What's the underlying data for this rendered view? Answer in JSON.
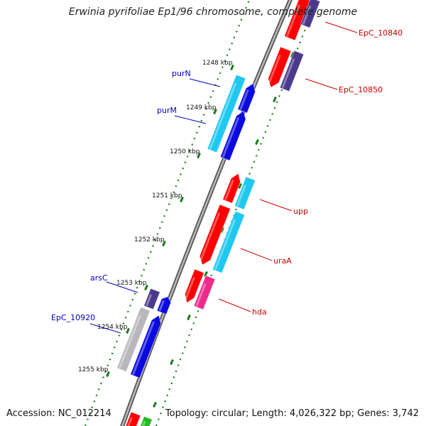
{
  "title": "Erwinia pyrifoliae Ep1/96 chromosome, complete genome",
  "accession": "Accession: NC_012214",
  "topology": "Topology: circular; Length: 4,026,322 bp; Genes: 3,742",
  "colors": {
    "backbone": "#8a8a8a",
    "tick": "#1a7a1a",
    "red_gene": "#ff0000",
    "purple_gene": "#4b3a8c",
    "cyan_gene": "#1ec8f0",
    "blue_gene": "#0a0ae0",
    "gray_gene": "#b8b8bc",
    "magenta_gene": "#ee2a8a",
    "green_gene": "#22bb22",
    "label_red": "#cc0000",
    "label_blue": "#0000bb"
  },
  "ticks": [
    {
      "label": "1248 kbp"
    },
    {
      "label": "1249 kbp"
    },
    {
      "label": "1250 kbp"
    },
    {
      "label": "1251 kbp"
    },
    {
      "label": "1252 kbp"
    },
    {
      "label": "1253 kbp"
    },
    {
      "label": "1254 kbp"
    },
    {
      "label": "1255 kbp"
    }
  ],
  "genes": [
    {
      "name": "EpC_10840",
      "color_key": "red_gene"
    },
    {
      "name": "EpC_10850",
      "color_key": "red_gene"
    },
    {
      "name": "purN",
      "color_key": "blue_gene"
    },
    {
      "name": "purM",
      "color_key": "blue_gene"
    },
    {
      "name": "upp",
      "color_key": "red_gene"
    },
    {
      "name": "uraA",
      "color_key": "red_gene"
    },
    {
      "name": "hda",
      "color_key": "red_gene"
    },
    {
      "name": "arsC",
      "color_key": "blue_gene"
    },
    {
      "name": "EpC_10920",
      "color_key": "blue_gene"
    }
  ]
}
